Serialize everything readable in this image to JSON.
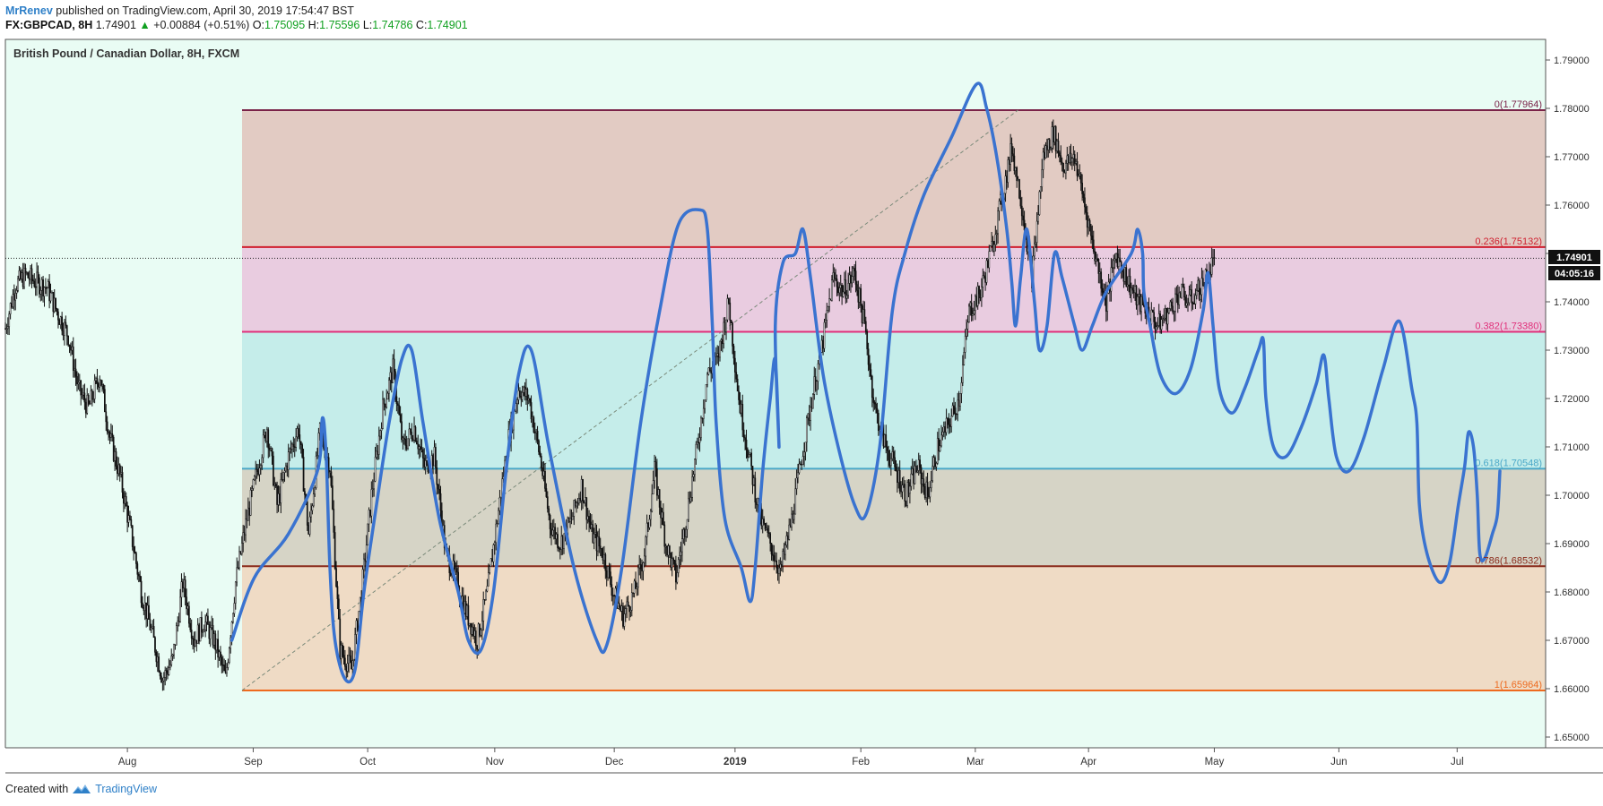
{
  "header": {
    "author": "MrRenev",
    "published_text": "published on TradingView.com, April 30, 2019 17:54:47 BST",
    "symbol": "FX:GBPCAD, 8H",
    "last": "1.74901",
    "change": "+0.00884 (+0.51%)",
    "open_label": "O:",
    "open": "1.75095",
    "high_label": "H:",
    "high": "1.75596",
    "low_label": "L:",
    "low": "1.74786",
    "close_label": "C:",
    "close": "1.74901"
  },
  "footer": {
    "created_with": "Created with",
    "brand": "TradingView"
  },
  "colors": {
    "background": "#e9fcf4",
    "candles": "#111111",
    "drawing": "#3a73d0",
    "fib0": "#7a2248",
    "fib236": "#d01f2f",
    "fib382": "#e0307a",
    "fib618": "#4aa8c8",
    "fib786": "#8a2a1a",
    "fib1": "#ee6a1e"
  },
  "chart_data": {
    "type": "candlestick",
    "title": "British Pound / Canadian Dollar, 8H, FXCM",
    "symbol": "GBPCAD",
    "timeframe": "8H",
    "x_ticks": [
      "Aug",
      "Sep",
      "Oct",
      "Nov",
      "Dec",
      "2019",
      "Feb",
      "Mar",
      "Apr",
      "May",
      "Jun",
      "Jul"
    ],
    "y_ticks": [
      "1.79000",
      "1.78000",
      "1.77000",
      "1.76000",
      "1.75000",
      "1.74000",
      "1.73000",
      "1.72000",
      "1.71000",
      "1.70000",
      "1.69000",
      "1.68000",
      "1.67000",
      "1.66000",
      "1.65000"
    ],
    "ylim": [
      1.6445,
      1.7947
    ],
    "current_price": "1.74901",
    "countdown": "04:05:16",
    "fib_levels": [
      {
        "label": "0(1.77964)",
        "value": 1.77964
      },
      {
        "label": "0.236(1.75132)",
        "value": 1.75132
      },
      {
        "label": "0.382(1.73380)",
        "value": 1.7338
      },
      {
        "label": "0.618(1.70548)",
        "value": 1.70548
      },
      {
        "label": "0.786(1.68532)",
        "value": 1.68532
      },
      {
        "label": "1(1.65964)",
        "value": 1.65964
      }
    ],
    "price_path": [
      [
        0,
        1.7345
      ],
      [
        8,
        1.7435
      ],
      [
        16,
        1.7455
      ],
      [
        25,
        1.744
      ],
      [
        33,
        1.743
      ],
      [
        41,
        1.738
      ],
      [
        50,
        1.733
      ],
      [
        58,
        1.722
      ],
      [
        66,
        1.718
      ],
      [
        75,
        1.725
      ],
      [
        83,
        1.712
      ],
      [
        91,
        1.704
      ],
      [
        100,
        1.692
      ],
      [
        108,
        1.68
      ],
      [
        116,
        1.672
      ],
      [
        125,
        1.662
      ],
      [
        133,
        1.666
      ],
      [
        141,
        1.682
      ],
      [
        150,
        1.67
      ],
      [
        158,
        1.674
      ],
      [
        166,
        1.67
      ],
      [
        175,
        1.662
      ],
      [
        183,
        1.682
      ],
      [
        191,
        1.694
      ],
      [
        200,
        1.705
      ],
      [
        208,
        1.714
      ],
      [
        216,
        1.698
      ],
      [
        225,
        1.708
      ],
      [
        233,
        1.714
      ],
      [
        241,
        1.692
      ],
      [
        250,
        1.713
      ],
      [
        258,
        1.706
      ],
      [
        266,
        1.668
      ],
      [
        275,
        1.664
      ],
      [
        283,
        1.68
      ],
      [
        291,
        1.7
      ],
      [
        300,
        1.718
      ],
      [
        308,
        1.726
      ],
      [
        316,
        1.71
      ],
      [
        325,
        1.714
      ],
      [
        333,
        1.706
      ],
      [
        341,
        1.708
      ],
      [
        350,
        1.688
      ],
      [
        358,
        1.683
      ],
      [
        366,
        1.676
      ],
      [
        375,
        1.67
      ],
      [
        383,
        1.68
      ],
      [
        391,
        1.695
      ],
      [
        400,
        1.712
      ],
      [
        408,
        1.722
      ],
      [
        416,
        1.72
      ],
      [
        425,
        1.708
      ],
      [
        433,
        1.694
      ],
      [
        441,
        1.69
      ],
      [
        450,
        1.695
      ],
      [
        458,
        1.702
      ],
      [
        466,
        1.692
      ],
      [
        475,
        1.688
      ],
      [
        483,
        1.68
      ],
      [
        491,
        1.675
      ],
      [
        500,
        1.68
      ],
      [
        508,
        1.688
      ],
      [
        516,
        1.705
      ],
      [
        525,
        1.69
      ],
      [
        533,
        1.683
      ],
      [
        541,
        1.695
      ],
      [
        550,
        1.71
      ],
      [
        558,
        1.725
      ],
      [
        566,
        1.728
      ],
      [
        575,
        1.74
      ],
      [
        583,
        1.72
      ],
      [
        591,
        1.708
      ],
      [
        600,
        1.695
      ],
      [
        608,
        1.69
      ],
      [
        616,
        1.684
      ],
      [
        625,
        1.695
      ],
      [
        633,
        1.708
      ],
      [
        641,
        1.72
      ],
      [
        650,
        1.732
      ],
      [
        658,
        1.745
      ],
      [
        666,
        1.742
      ],
      [
        675,
        1.746
      ],
      [
        683,
        1.735
      ],
      [
        691,
        1.718
      ],
      [
        700,
        1.71
      ],
      [
        708,
        1.705
      ],
      [
        716,
        1.7
      ],
      [
        725,
        1.706
      ],
      [
        733,
        1.7
      ],
      [
        741,
        1.71
      ],
      [
        750,
        1.715
      ],
      [
        758,
        1.72
      ],
      [
        766,
        1.738
      ],
      [
        775,
        1.742
      ],
      [
        783,
        1.75
      ],
      [
        791,
        1.76
      ],
      [
        800,
        1.772
      ],
      [
        808,
        1.76
      ],
      [
        816,
        1.745
      ],
      [
        825,
        1.77
      ],
      [
        833,
        1.775
      ],
      [
        841,
        1.768
      ],
      [
        850,
        1.77
      ],
      [
        858,
        1.76
      ],
      [
        866,
        1.75
      ],
      [
        875,
        1.74
      ],
      [
        883,
        1.75
      ],
      [
        891,
        1.745
      ],
      [
        900,
        1.74
      ],
      [
        908,
        1.738
      ],
      [
        916,
        1.735
      ],
      [
        925,
        1.738
      ],
      [
        933,
        1.742
      ],
      [
        941,
        1.74
      ],
      [
        950,
        1.743
      ],
      [
        958,
        1.747
      ],
      [
        961,
        1.749
      ]
    ],
    "drawing_path": [
      [
        180,
        1.67
      ],
      [
        198,
        1.683
      ],
      [
        225,
        1.692
      ],
      [
        248,
        1.705
      ],
      [
        252,
        1.716
      ],
      [
        255,
        1.708
      ],
      [
        258,
        1.685
      ],
      [
        262,
        1.67
      ],
      [
        270,
        1.662
      ],
      [
        278,
        1.664
      ],
      [
        285,
        1.68
      ],
      [
        295,
        1.698
      ],
      [
        305,
        1.715
      ],
      [
        315,
        1.728
      ],
      [
        323,
        1.73
      ],
      [
        332,
        1.715
      ],
      [
        345,
        1.695
      ],
      [
        360,
        1.68
      ],
      [
        368,
        1.67
      ],
      [
        378,
        1.668
      ],
      [
        388,
        1.68
      ],
      [
        398,
        1.705
      ],
      [
        408,
        1.725
      ],
      [
        418,
        1.73
      ],
      [
        432,
        1.71
      ],
      [
        452,
        1.685
      ],
      [
        470,
        1.67
      ],
      [
        478,
        1.669
      ],
      [
        490,
        1.685
      ],
      [
        505,
        1.715
      ],
      [
        520,
        1.738
      ],
      [
        535,
        1.756
      ],
      [
        552,
        1.759
      ],
      [
        558,
        1.755
      ],
      [
        562,
        1.735
      ],
      [
        565,
        1.715
      ],
      [
        572,
        1.695
      ],
      [
        585,
        1.685
      ],
      [
        592,
        1.678
      ],
      [
        596,
        1.685
      ],
      [
        602,
        1.705
      ],
      [
        608,
        1.72
      ],
      [
        612,
        1.728
      ],
      [
        615,
        1.71
      ],
      [
        612,
        1.735
      ],
      [
        618,
        1.748
      ],
      [
        628,
        1.75
      ],
      [
        634,
        1.755
      ],
      [
        640,
        1.745
      ],
      [
        650,
        1.725
      ],
      [
        662,
        1.71
      ],
      [
        675,
        1.698
      ],
      [
        684,
        1.696
      ],
      [
        695,
        1.71
      ],
      [
        705,
        1.738
      ],
      [
        715,
        1.75
      ],
      [
        730,
        1.762
      ],
      [
        752,
        1.774
      ],
      [
        772,
        1.785
      ],
      [
        780,
        1.78
      ],
      [
        788,
        1.77
      ],
      [
        796,
        1.755
      ],
      [
        800,
        1.744
      ],
      [
        803,
        1.735
      ],
      [
        807,
        1.745
      ],
      [
        812,
        1.755
      ],
      [
        818,
        1.74
      ],
      [
        822,
        1.73
      ],
      [
        828,
        1.735
      ],
      [
        834,
        1.75
      ],
      [
        840,
        1.745
      ],
      [
        850,
        1.735
      ],
      [
        856,
        1.73
      ],
      [
        864,
        1.735
      ],
      [
        875,
        1.742
      ],
      [
        895,
        1.75
      ],
      [
        900,
        1.755
      ],
      [
        904,
        1.75
      ],
      [
        905,
        1.742
      ],
      [
        910,
        1.735
      ],
      [
        918,
        1.725
      ],
      [
        930,
        1.721
      ],
      [
        942,
        1.726
      ],
      [
        952,
        1.738
      ],
      [
        956,
        1.746
      ],
      [
        960,
        1.735
      ],
      [
        965,
        1.722
      ],
      [
        975,
        1.717
      ],
      [
        985,
        1.722
      ],
      [
        996,
        1.73
      ],
      [
        1000,
        1.732
      ],
      [
        1002,
        1.72
      ],
      [
        1008,
        1.71
      ],
      [
        1018,
        1.708
      ],
      [
        1030,
        1.714
      ],
      [
        1042,
        1.723
      ],
      [
        1048,
        1.729
      ],
      [
        1052,
        1.72
      ],
      [
        1058,
        1.708
      ],
      [
        1068,
        1.705
      ],
      [
        1080,
        1.712
      ],
      [
        1095,
        1.726
      ],
      [
        1108,
        1.736
      ],
      [
        1118,
        1.722
      ],
      [
        1122,
        1.715
      ],
      [
        1124,
        1.698
      ],
      [
        1130,
        1.688
      ],
      [
        1140,
        1.682
      ],
      [
        1148,
        1.686
      ],
      [
        1155,
        1.698
      ],
      [
        1160,
        1.706
      ],
      [
        1163,
        1.713
      ],
      [
        1167,
        1.71
      ],
      [
        1170,
        1.7
      ],
      [
        1172,
        1.688
      ],
      [
        1176,
        1.687
      ],
      [
        1182,
        1.692
      ],
      [
        1186,
        1.696
      ],
      [
        1188,
        1.705
      ]
    ]
  }
}
